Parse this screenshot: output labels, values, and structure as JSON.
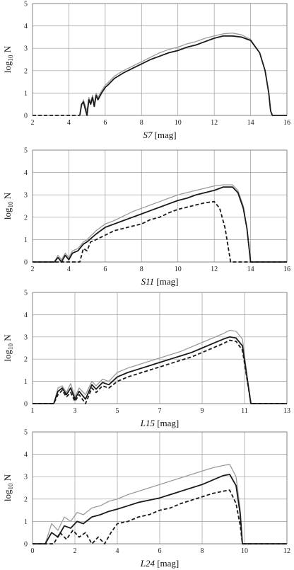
{
  "chart_data": [
    {
      "type": "line",
      "xlabel_italic": "S7",
      "xlabel_unit": " [mag]",
      "ylabel_main": "log",
      "ylabel_sub": "10",
      "ylabel_tail": " N",
      "xlim": [
        2,
        16
      ],
      "ylim": [
        0,
        5
      ],
      "x_ticks": [
        "2",
        "4",
        "6",
        "8",
        "10",
        "12",
        "14",
        "16"
      ],
      "y_ticks": [
        "0",
        "1",
        "2",
        "3",
        "4",
        "5"
      ],
      "grid": true,
      "series": [
        {
          "style": "dashed-black",
          "x": [
            2,
            4.6
          ],
          "y": [
            0,
            0
          ]
        },
        {
          "style": "solid-gray",
          "x": [
            4.6,
            4.7,
            4.8,
            5.0,
            5.1,
            5.2,
            5.3,
            5.4,
            5.5,
            5.6,
            5.8,
            6.0,
            6.2,
            6.5,
            7.0,
            7.5,
            8.0,
            8.5,
            9.0,
            9.5,
            10.0,
            10.5,
            11.0,
            11.5,
            12.0,
            12.5,
            13.0,
            13.5,
            14.0,
            14.5,
            14.8,
            15.0,
            15.1,
            15.2,
            16.0
          ],
          "y": [
            0,
            0.4,
            0.7,
            0.2,
            0.8,
            0.6,
            0.9,
            0.5,
            1.0,
            0.8,
            1.1,
            1.35,
            1.5,
            1.75,
            2.0,
            2.2,
            2.4,
            2.6,
            2.8,
            2.95,
            3.05,
            3.2,
            3.3,
            3.45,
            3.55,
            3.65,
            3.68,
            3.6,
            3.4,
            2.8,
            2.0,
            1.0,
            0.2,
            0,
            0
          ]
        },
        {
          "style": "solid-black",
          "x": [
            4.6,
            4.7,
            4.8,
            5.0,
            5.1,
            5.2,
            5.3,
            5.4,
            5.5,
            5.6,
            5.8,
            6.0,
            6.2,
            6.5,
            7.0,
            7.5,
            8.0,
            8.5,
            9.0,
            9.5,
            10.0,
            10.5,
            11.0,
            11.5,
            12.0,
            12.5,
            13.0,
            13.5,
            14.0,
            14.5,
            14.8,
            15.0,
            15.1,
            15.2,
            16.0
          ],
          "y": [
            0,
            0.5,
            0.6,
            0.0,
            0.7,
            0.5,
            0.8,
            0.4,
            0.9,
            0.7,
            1.0,
            1.25,
            1.4,
            1.65,
            1.9,
            2.1,
            2.3,
            2.5,
            2.65,
            2.8,
            2.9,
            3.05,
            3.15,
            3.3,
            3.45,
            3.55,
            3.55,
            3.5,
            3.35,
            2.8,
            2.0,
            1.0,
            0.2,
            0,
            0
          ]
        }
      ]
    },
    {
      "type": "line",
      "xlabel_italic": "S11",
      "xlabel_unit": " [mag]",
      "ylabel_main": "log",
      "ylabel_sub": "10",
      "ylabel_tail": " N",
      "xlim": [
        2,
        16
      ],
      "ylim": [
        0,
        5
      ],
      "x_ticks": [
        "2",
        "4",
        "6",
        "8",
        "10",
        "12",
        "14",
        "16"
      ],
      "y_ticks": [
        "0",
        "1",
        "2",
        "3",
        "4",
        "5"
      ],
      "grid": true,
      "series": [
        {
          "style": "dashed-black",
          "x": [
            2.0,
            4.6,
            4.8,
            5.0,
            5.2,
            5.5,
            6.0,
            6.5,
            7.0,
            7.5,
            8.0,
            8.5,
            9.0,
            9.5,
            10.0,
            10.5,
            11.0,
            11.5,
            12.0,
            12.3,
            12.6,
            12.8,
            12.9,
            16.0
          ],
          "y": [
            0,
            0,
            0.6,
            0.5,
            0.9,
            1.0,
            1.2,
            1.4,
            1.5,
            1.6,
            1.7,
            1.9,
            2.0,
            2.2,
            2.35,
            2.45,
            2.55,
            2.65,
            2.7,
            2.4,
            1.5,
            0.5,
            0,
            0
          ]
        },
        {
          "style": "solid-gray",
          "x": [
            2.0,
            3.2,
            3.4,
            3.6,
            3.8,
            4.0,
            4.2,
            4.5,
            4.8,
            5.0,
            5.5,
            6.0,
            6.5,
            7.0,
            7.5,
            8.0,
            8.5,
            9.0,
            9.5,
            10.0,
            10.5,
            11.0,
            11.5,
            12.0,
            12.5,
            13.0,
            13.3,
            13.6,
            13.8,
            14.0,
            16.0
          ],
          "y": [
            0,
            0,
            0.3,
            0.1,
            0.4,
            0.2,
            0.5,
            0.6,
            0.9,
            1.0,
            1.4,
            1.7,
            1.85,
            2.05,
            2.25,
            2.4,
            2.55,
            2.7,
            2.85,
            3.0,
            3.1,
            3.2,
            3.3,
            3.4,
            3.45,
            3.45,
            3.2,
            2.5,
            1.5,
            0,
            0
          ]
        },
        {
          "style": "solid-black",
          "x": [
            2.0,
            3.2,
            3.4,
            3.6,
            3.8,
            4.0,
            4.2,
            4.5,
            4.8,
            5.0,
            5.5,
            6.0,
            6.5,
            7.0,
            7.5,
            8.0,
            8.5,
            9.0,
            9.5,
            10.0,
            10.5,
            11.0,
            11.5,
            12.0,
            12.5,
            13.0,
            13.3,
            13.6,
            13.8,
            14.0,
            16.0
          ],
          "y": [
            0,
            0,
            0.2,
            0.0,
            0.3,
            0.1,
            0.4,
            0.5,
            0.8,
            0.9,
            1.25,
            1.55,
            1.7,
            1.85,
            2.0,
            2.15,
            2.3,
            2.45,
            2.6,
            2.75,
            2.85,
            3.0,
            3.1,
            3.2,
            3.35,
            3.35,
            3.1,
            2.4,
            1.5,
            0,
            0
          ]
        }
      ]
    },
    {
      "type": "line",
      "xlabel_italic": "L15",
      "xlabel_unit": " [mag]",
      "ylabel_main": "log",
      "ylabel_sub": "10",
      "ylabel_tail": " N",
      "xlim": [
        1,
        13
      ],
      "ylim": [
        0,
        5
      ],
      "x_ticks": [
        "1",
        "3",
        "5",
        "7",
        "9",
        "11",
        "13"
      ],
      "y_ticks": [
        "0",
        "1",
        "2",
        "3",
        "4",
        "5"
      ],
      "grid": true,
      "series": [
        {
          "style": "dashed-black",
          "x": [
            1.0,
            2.0,
            2.2,
            2.4,
            2.6,
            2.8,
            3.0,
            3.2,
            3.5,
            3.8,
            4.0,
            4.3,
            4.6,
            5.0,
            5.5,
            6.0,
            6.5,
            7.0,
            7.5,
            8.0,
            8.5,
            9.0,
            9.5,
            10.0,
            10.3,
            10.6,
            10.9,
            11.1,
            11.3,
            13.0
          ],
          "y": [
            0,
            0,
            0.4,
            0.6,
            0.3,
            0.5,
            0.1,
            0.4,
            0.0,
            0.7,
            0.5,
            0.8,
            0.7,
            1.0,
            1.2,
            1.35,
            1.5,
            1.65,
            1.8,
            1.95,
            2.1,
            2.3,
            2.5,
            2.7,
            2.85,
            2.8,
            2.4,
            1.2,
            0,
            0
          ]
        },
        {
          "style": "solid-gray",
          "x": [
            1.0,
            2.0,
            2.2,
            2.4,
            2.6,
            2.8,
            3.0,
            3.2,
            3.5,
            3.8,
            4.0,
            4.3,
            4.6,
            5.0,
            5.5,
            6.0,
            6.5,
            7.0,
            7.5,
            8.0,
            8.5,
            9.0,
            9.5,
            10.0,
            10.3,
            10.6,
            10.9,
            11.1,
            11.3,
            13.0
          ],
          "y": [
            0,
            0,
            0.7,
            0.8,
            0.5,
            0.9,
            0.3,
            0.7,
            0.4,
            1.0,
            0.8,
            1.1,
            1.0,
            1.4,
            1.6,
            1.75,
            1.9,
            2.05,
            2.2,
            2.35,
            2.55,
            2.75,
            2.95,
            3.15,
            3.3,
            3.25,
            2.9,
            1.4,
            0,
            0
          ]
        },
        {
          "style": "solid-black",
          "x": [
            1.0,
            2.0,
            2.2,
            2.4,
            2.6,
            2.8,
            3.0,
            3.2,
            3.5,
            3.8,
            4.0,
            4.3,
            4.6,
            5.0,
            5.5,
            6.0,
            6.5,
            7.0,
            7.5,
            8.0,
            8.5,
            9.0,
            9.5,
            10.0,
            10.3,
            10.6,
            10.9,
            11.1,
            11.3,
            13.0
          ],
          "y": [
            0,
            0,
            0.55,
            0.7,
            0.4,
            0.7,
            0.2,
            0.55,
            0.2,
            0.85,
            0.65,
            0.95,
            0.85,
            1.2,
            1.4,
            1.55,
            1.7,
            1.85,
            2.0,
            2.15,
            2.3,
            2.5,
            2.7,
            2.9,
            3.0,
            2.95,
            2.6,
            1.3,
            0,
            0
          ]
        }
      ]
    },
    {
      "type": "line",
      "xlabel_italic": "L24",
      "xlabel_unit": " [mag]",
      "ylabel_main": "log",
      "ylabel_sub": "10",
      "ylabel_tail": " N",
      "xlim": [
        0,
        12
      ],
      "ylim": [
        0,
        5
      ],
      "x_ticks": [
        "0",
        "2",
        "4",
        "6",
        "8",
        "10",
        "12"
      ],
      "y_ticks": [
        "0",
        "1",
        "2",
        "3",
        "4",
        "5"
      ],
      "grid": true,
      "series": [
        {
          "style": "dashed-black",
          "x": [
            0.0,
            1.0,
            1.3,
            1.6,
            1.9,
            2.2,
            2.5,
            2.8,
            3.1,
            3.4,
            3.7,
            4.0,
            4.5,
            5.0,
            5.5,
            6.0,
            6.5,
            7.0,
            7.5,
            8.0,
            8.5,
            9.0,
            9.3,
            9.6,
            9.8,
            9.9,
            12.0
          ],
          "y": [
            0,
            0,
            0.5,
            0.2,
            0.6,
            0.3,
            0.5,
            0.0,
            0.3,
            0.0,
            0.5,
            0.9,
            1.0,
            1.2,
            1.3,
            1.5,
            1.6,
            1.8,
            1.95,
            2.1,
            2.25,
            2.35,
            2.4,
            1.8,
            0.8,
            0,
            0
          ]
        },
        {
          "style": "solid-gray",
          "x": [
            0.0,
            0.6,
            0.9,
            1.2,
            1.5,
            1.8,
            2.1,
            2.4,
            2.8,
            3.2,
            3.6,
            4.0,
            4.5,
            5.0,
            5.5,
            6.0,
            6.5,
            7.0,
            7.5,
            8.0,
            8.5,
            9.0,
            9.3,
            9.6,
            9.8,
            9.9,
            12.0
          ],
          "y": [
            0,
            0,
            0.9,
            0.6,
            1.2,
            1.0,
            1.4,
            1.3,
            1.6,
            1.7,
            1.9,
            2.0,
            2.2,
            2.35,
            2.5,
            2.65,
            2.8,
            2.95,
            3.1,
            3.25,
            3.4,
            3.5,
            3.55,
            3.0,
            1.5,
            0,
            0
          ]
        },
        {
          "style": "solid-black",
          "x": [
            0.0,
            0.6,
            0.9,
            1.2,
            1.5,
            1.8,
            2.1,
            2.4,
            2.8,
            3.2,
            3.6,
            4.0,
            4.5,
            5.0,
            5.5,
            6.0,
            6.5,
            7.0,
            7.5,
            8.0,
            8.5,
            9.0,
            9.3,
            9.6,
            9.8,
            9.9,
            12.0
          ],
          "y": [
            0,
            0,
            0.5,
            0.3,
            0.8,
            0.7,
            1.0,
            0.9,
            1.2,
            1.3,
            1.45,
            1.55,
            1.7,
            1.85,
            1.95,
            2.05,
            2.2,
            2.35,
            2.5,
            2.65,
            2.85,
            3.05,
            3.1,
            2.6,
            1.3,
            0,
            0
          ]
        }
      ]
    }
  ]
}
